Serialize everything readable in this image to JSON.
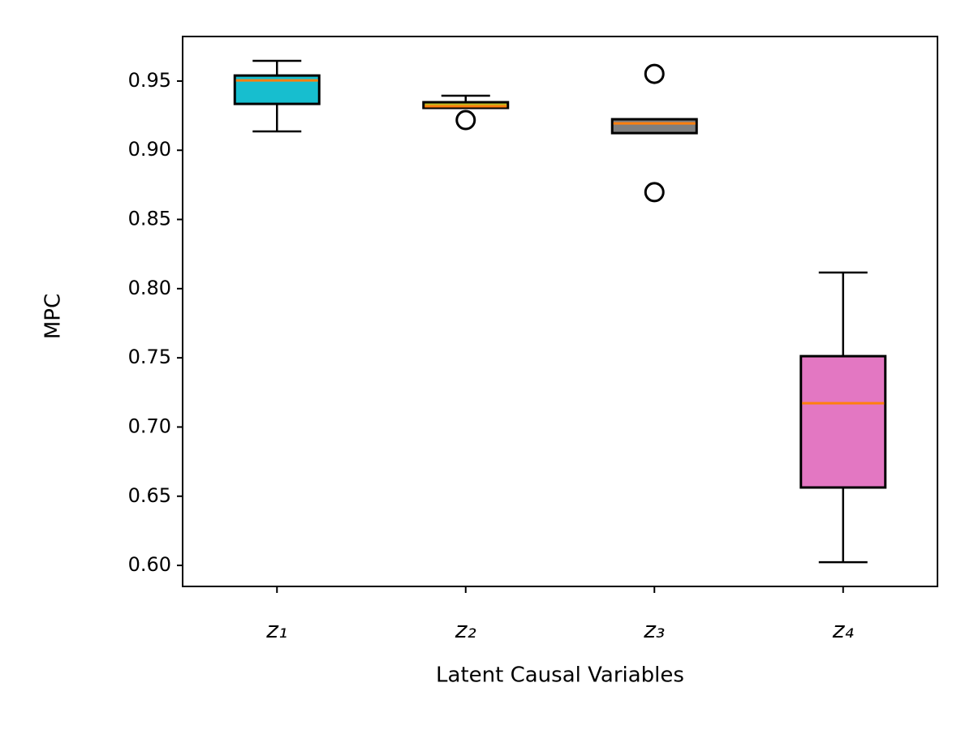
{
  "chart_data": {
    "type": "box",
    "xlabel": "Latent Causal Variables",
    "ylabel": "MPC",
    "categories": [
      "z₁",
      "z₂",
      "z₃",
      "z₄"
    ],
    "boxes": [
      {
        "whislo": 0.9136,
        "q1": 0.9335,
        "med": 0.9505,
        "q3": 0.954,
        "whishi": 0.9646,
        "fliers": [],
        "color": "#17becf"
      },
      {
        "whislo": 0.9306,
        "q1": 0.9306,
        "med": 0.9318,
        "q3": 0.9347,
        "whishi": 0.9394,
        "fliers": [
          0.9218
        ],
        "color": "#bcbd22"
      },
      {
        "whislo": 0.9124,
        "q1": 0.9124,
        "med": 0.9194,
        "q3": 0.9224,
        "whishi": 0.9224,
        "fliers": [
          0.9552,
          0.8697
        ],
        "color": "#7f7f7f"
      },
      {
        "whislo": 0.6023,
        "q1": 0.6563,
        "med": 0.7172,
        "q3": 0.7512,
        "whishi": 0.8116,
        "fliers": [],
        "color": "#e377c2"
      }
    ],
    "median_color": "#ff7f0e",
    "ylim": [
      0.5848,
      0.9822
    ],
    "yticks": [
      {
        "value": 0.6,
        "label": "0.60"
      },
      0.65,
      {
        "value": 0.7,
        "label": "0.70"
      },
      0.75,
      {
        "value": 0.8,
        "label": "0.80"
      },
      0.85,
      {
        "value": 0.9,
        "label": "0.90"
      },
      0.95
    ],
    "grid": false
  }
}
